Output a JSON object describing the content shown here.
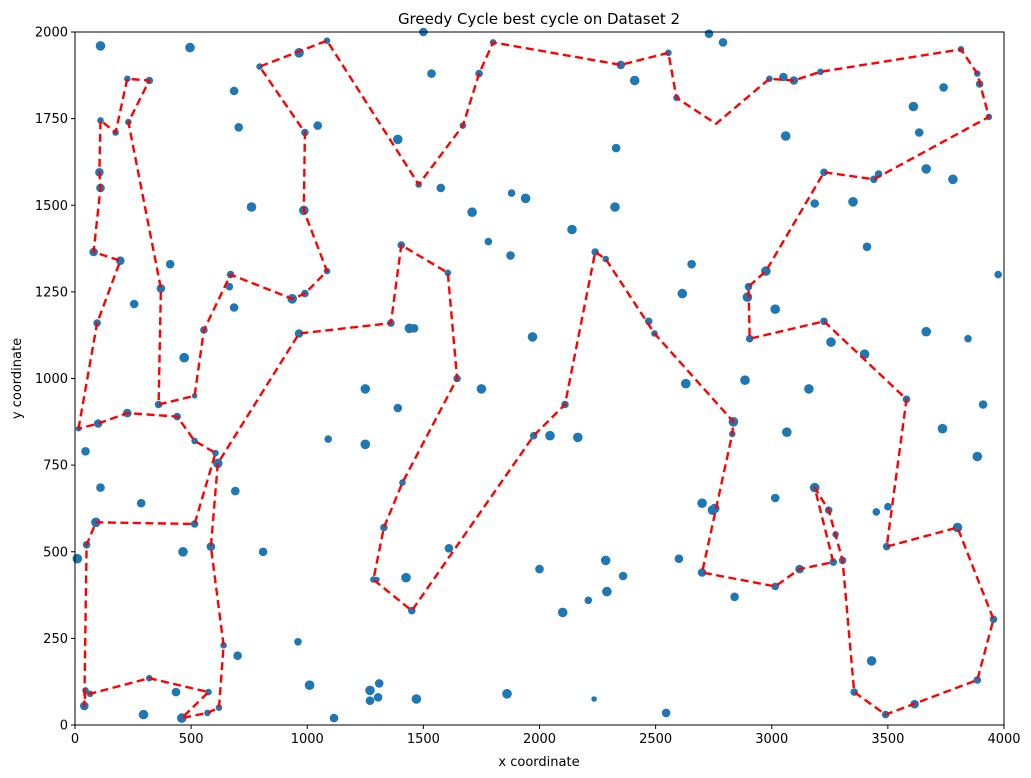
{
  "chart_data": {
    "type": "scatter",
    "title": "Greedy Cycle best cycle on Dataset 2",
    "xlabel": "x coordinate",
    "ylabel": "y coordinate",
    "xlim": [
      0,
      4000
    ],
    "ylim": [
      0,
      2000
    ],
    "x_ticks": [
      "0",
      "500",
      "1000",
      "1500",
      "2000",
      "2500",
      "3000",
      "3500",
      "4000"
    ],
    "y_ticks": [
      "0",
      "250",
      "500",
      "750",
      "1000",
      "1250",
      "1500",
      "1750",
      "2000"
    ],
    "grid": false,
    "colors": {
      "points": "#1f77b4",
      "cycle": "#ff0000"
    },
    "points": [
      [
        110,
        1960,
        9
      ],
      [
        495,
        1955,
        9
      ],
      [
        1085,
        1975,
        6
      ],
      [
        965,
        1940,
        9
      ],
      [
        795,
        1900,
        6
      ],
      [
        1500,
        2000,
        8
      ],
      [
        1535,
        1880,
        8
      ],
      [
        1800,
        1970,
        6
      ],
      [
        2350,
        1905,
        8
      ],
      [
        2555,
        1940,
        6
      ],
      [
        2730,
        1995,
        8
      ],
      [
        2790,
        1970,
        8
      ],
      [
        2410,
        1860,
        9
      ],
      [
        2590,
        1810,
        6
      ],
      [
        3050,
        1870,
        8
      ],
      [
        3095,
        1860,
        8
      ],
      [
        2990,
        1865,
        6
      ],
      [
        3210,
        1885,
        6
      ],
      [
        3815,
        1950,
        6
      ],
      [
        3885,
        1880,
        6
      ],
      [
        3895,
        1850,
        7
      ],
      [
        3740,
        1840,
        8
      ],
      [
        3610,
        1785,
        9
      ],
      [
        3935,
        1755,
        6
      ],
      [
        3635,
        1710,
        8
      ],
      [
        3060,
        1700,
        9
      ],
      [
        685,
        1830,
        8
      ],
      [
        705,
        1725,
        8
      ],
      [
        1045,
        1730,
        8
      ],
      [
        990,
        1710,
        7
      ],
      [
        1390,
        1690,
        9
      ],
      [
        2330,
        1665,
        8
      ],
      [
        1670,
        1730,
        6
      ],
      [
        1740,
        1880,
        7
      ],
      [
        1480,
        1560,
        6
      ],
      [
        1575,
        1550,
        8
      ],
      [
        1710,
        1480,
        9
      ],
      [
        1880,
        1535,
        7
      ],
      [
        1940,
        1520,
        9
      ],
      [
        2325,
        1495,
        9
      ],
      [
        2140,
        1430,
        9
      ],
      [
        1780,
        1395,
        7
      ],
      [
        1875,
        1355,
        8
      ],
      [
        2240,
        1365,
        7
      ],
      [
        2285,
        1345,
        6
      ],
      [
        2655,
        1330,
        8
      ],
      [
        2615,
        1245,
        9
      ],
      [
        2975,
        1310,
        9
      ],
      [
        2900,
        1265,
        7
      ],
      [
        2895,
        1235,
        9
      ],
      [
        3015,
        1200,
        9
      ],
      [
        3185,
        1505,
        8
      ],
      [
        3350,
        1510,
        9
      ],
      [
        3225,
        1595,
        7
      ],
      [
        3460,
        1590,
        7
      ],
      [
        3440,
        1575,
        7
      ],
      [
        3665,
        1605,
        9
      ],
      [
        3780,
        1575,
        9
      ],
      [
        3410,
        1380,
        8
      ],
      [
        3975,
        1300,
        7
      ],
      [
        3665,
        1135,
        9
      ],
      [
        3845,
        1115,
        7
      ],
      [
        3225,
        1165,
        7
      ],
      [
        3255,
        1105,
        9
      ],
      [
        3400,
        1070,
        9
      ],
      [
        2905,
        1115,
        7
      ],
      [
        2470,
        1165,
        7
      ],
      [
        2495,
        1130,
        6
      ],
      [
        2630,
        985,
        9
      ],
      [
        2885,
        995,
        9
      ],
      [
        3160,
        970,
        9
      ],
      [
        3065,
        845,
        9
      ],
      [
        3580,
        940,
        7
      ],
      [
        3735,
        855,
        9
      ],
      [
        3910,
        925,
        8
      ],
      [
        3885,
        775,
        9
      ],
      [
        2835,
        875,
        9
      ],
      [
        2830,
        840,
        6
      ],
      [
        2700,
        640,
        9
      ],
      [
        2745,
        620,
        9
      ],
      [
        2755,
        625,
        9
      ],
      [
        3015,
        655,
        8
      ],
      [
        3185,
        685,
        9
      ],
      [
        3245,
        620,
        7
      ],
      [
        3275,
        550,
        6
      ],
      [
        3305,
        475,
        7
      ],
      [
        3265,
        470,
        7
      ],
      [
        3120,
        450,
        8
      ],
      [
        3015,
        400,
        7
      ],
      [
        2700,
        440,
        8
      ],
      [
        2600,
        480,
        8
      ],
      [
        2840,
        370,
        8
      ],
      [
        2285,
        475,
        9
      ],
      [
        2290,
        385,
        9
      ],
      [
        2360,
        430,
        8
      ],
      [
        2210,
        360,
        7
      ],
      [
        2235,
        75,
        5
      ],
      [
        2545,
        35,
        8
      ],
      [
        3355,
        95,
        7
      ],
      [
        3430,
        185,
        9
      ],
      [
        3490,
        30,
        7
      ],
      [
        3615,
        60,
        8
      ],
      [
        3885,
        130,
        7
      ],
      [
        3955,
        305,
        7
      ],
      [
        3800,
        570,
        9
      ],
      [
        3500,
        630,
        7
      ],
      [
        3495,
        515,
        7
      ],
      [
        3450,
        615,
        7
      ],
      [
        2000,
        450,
        8
      ],
      [
        2100,
        325,
        9
      ],
      [
        2045,
        835,
        9
      ],
      [
        2165,
        830,
        9
      ],
      [
        1970,
        1120,
        9
      ],
      [
        1975,
        835,
        7
      ],
      [
        2110,
        925,
        7
      ],
      [
        1860,
        90,
        9
      ],
      [
        1605,
        1305,
        6
      ],
      [
        1645,
        1000,
        7
      ],
      [
        1750,
        970,
        9
      ],
      [
        1610,
        510,
        8
      ],
      [
        1450,
        330,
        7
      ],
      [
        1425,
        425,
        9
      ],
      [
        1285,
        420,
        6
      ],
      [
        1330,
        570,
        7
      ],
      [
        1410,
        700,
        6
      ],
      [
        1390,
        915,
        8
      ],
      [
        1250,
        970,
        9
      ],
      [
        1250,
        810,
        9
      ],
      [
        1090,
        825,
        7
      ],
      [
        1360,
        1160,
        7
      ],
      [
        1440,
        1145,
        9
      ],
      [
        1460,
        1145,
        8
      ],
      [
        1405,
        1385,
        7
      ],
      [
        1085,
        1310,
        6
      ],
      [
        985,
        1485,
        9
      ],
      [
        990,
        1245,
        7
      ],
      [
        935,
        1230,
        9
      ],
      [
        965,
        1130,
        8
      ],
      [
        760,
        1495,
        9
      ],
      [
        685,
        1205,
        8
      ],
      [
        670,
        1300,
        7
      ],
      [
        665,
        1265,
        7
      ],
      [
        555,
        1140,
        7
      ],
      [
        410,
        1330,
        8
      ],
      [
        370,
        1260,
        8
      ],
      [
        255,
        1215,
        8
      ],
      [
        320,
        1860,
        7
      ],
      [
        225,
        1865,
        6
      ],
      [
        230,
        1740,
        6
      ],
      [
        175,
        1710,
        6
      ],
      [
        110,
        1745,
        6
      ],
      [
        105,
        1595,
        8
      ],
      [
        110,
        1550,
        8
      ],
      [
        80,
        1365,
        8
      ],
      [
        195,
        1340,
        8
      ],
      [
        95,
        1160,
        7
      ],
      [
        360,
        925,
        7
      ],
      [
        515,
        950,
        5
      ],
      [
        470,
        1060,
        9
      ],
      [
        440,
        890,
        7
      ],
      [
        225,
        900,
        8
      ],
      [
        100,
        870,
        8
      ],
      [
        45,
        790,
        8
      ],
      [
        15,
        855,
        5
      ],
      [
        515,
        820,
        6
      ],
      [
        605,
        785,
        6
      ],
      [
        615,
        755,
        9
      ],
      [
        690,
        675,
        8
      ],
      [
        110,
        685,
        8
      ],
      [
        285,
        640,
        8
      ],
      [
        90,
        585,
        9
      ],
      [
        515,
        580,
        7
      ],
      [
        585,
        515,
        8
      ],
      [
        810,
        500,
        8
      ],
      [
        465,
        500,
        9
      ],
      [
        10,
        480,
        9
      ],
      [
        50,
        520,
        7
      ],
      [
        65,
        90,
        6
      ],
      [
        45,
        100,
        6
      ],
      [
        40,
        55,
        8
      ],
      [
        320,
        135,
        6
      ],
      [
        435,
        95,
        8
      ],
      [
        295,
        30,
        9
      ],
      [
        460,
        20,
        9
      ],
      [
        575,
        95,
        6
      ],
      [
        570,
        35,
        6
      ],
      [
        620,
        50,
        6
      ],
      [
        640,
        230,
        6
      ],
      [
        700,
        200,
        8
      ],
      [
        960,
        240,
        7
      ],
      [
        1010,
        115,
        9
      ],
      [
        1115,
        20,
        8
      ],
      [
        1270,
        100,
        9
      ],
      [
        1270,
        70,
        8
      ],
      [
        1310,
        120,
        8
      ],
      [
        1305,
        80,
        8
      ],
      [
        1470,
        75,
        9
      ],
      [
        1300,
        420,
        5
      ]
    ],
    "cycle": [
      [
        15,
        855
      ],
      [
        95,
        1160
      ],
      [
        195,
        1340
      ],
      [
        80,
        1365
      ],
      [
        110,
        1550
      ],
      [
        105,
        1595
      ],
      [
        110,
        1745
      ],
      [
        175,
        1710
      ],
      [
        225,
        1865
      ],
      [
        320,
        1860
      ],
      [
        230,
        1740
      ],
      [
        370,
        1260
      ],
      [
        360,
        925
      ],
      [
        515,
        950
      ],
      [
        555,
        1140
      ],
      [
        670,
        1300
      ],
      [
        935,
        1230
      ],
      [
        990,
        1245
      ],
      [
        1085,
        1310
      ],
      [
        985,
        1485
      ],
      [
        990,
        1710
      ],
      [
        795,
        1900
      ],
      [
        1085,
        1975
      ],
      [
        1480,
        1560
      ],
      [
        1670,
        1730
      ],
      [
        1740,
        1880
      ],
      [
        1800,
        1970
      ],
      [
        2350,
        1905
      ],
      [
        2555,
        1940
      ],
      [
        2590,
        1810
      ],
      [
        2760,
        1735
      ],
      [
        2990,
        1865
      ],
      [
        3095,
        1860
      ],
      [
        3210,
        1885
      ],
      [
        3815,
        1950
      ],
      [
        3885,
        1880
      ],
      [
        3935,
        1755
      ],
      [
        3440,
        1575
      ],
      [
        3225,
        1595
      ],
      [
        2975,
        1310
      ],
      [
        2900,
        1265
      ],
      [
        2905,
        1115
      ],
      [
        3225,
        1165
      ],
      [
        3580,
        940
      ],
      [
        3495,
        515
      ],
      [
        3800,
        570
      ],
      [
        3955,
        305
      ],
      [
        3885,
        130
      ],
      [
        3490,
        30
      ],
      [
        3355,
        95
      ],
      [
        3305,
        475
      ],
      [
        3245,
        620
      ],
      [
        3185,
        685
      ],
      [
        3265,
        470
      ],
      [
        3120,
        450
      ],
      [
        3015,
        400
      ],
      [
        2700,
        440
      ],
      [
        2830,
        840
      ],
      [
        2835,
        875
      ],
      [
        2495,
        1130
      ],
      [
        2285,
        1345
      ],
      [
        2240,
        1365
      ],
      [
        2110,
        925
      ],
      [
        1975,
        835
      ],
      [
        1450,
        330
      ],
      [
        1285,
        420
      ],
      [
        1330,
        570
      ],
      [
        1410,
        700
      ],
      [
        1645,
        1000
      ],
      [
        1605,
        1305
      ],
      [
        1405,
        1385
      ],
      [
        1360,
        1160
      ],
      [
        965,
        1130
      ],
      [
        615,
        755
      ],
      [
        585,
        515
      ],
      [
        640,
        230
      ],
      [
        620,
        50
      ],
      [
        570,
        35
      ],
      [
        460,
        20
      ],
      [
        575,
        95
      ],
      [
        320,
        135
      ],
      [
        65,
        90
      ],
      [
        45,
        100
      ],
      [
        40,
        55
      ],
      [
        50,
        520
      ],
      [
        90,
        585
      ],
      [
        515,
        580
      ],
      [
        605,
        785
      ],
      [
        515,
        820
      ],
      [
        440,
        890
      ],
      [
        225,
        900
      ],
      [
        100,
        870
      ],
      [
        15,
        855
      ]
    ]
  }
}
